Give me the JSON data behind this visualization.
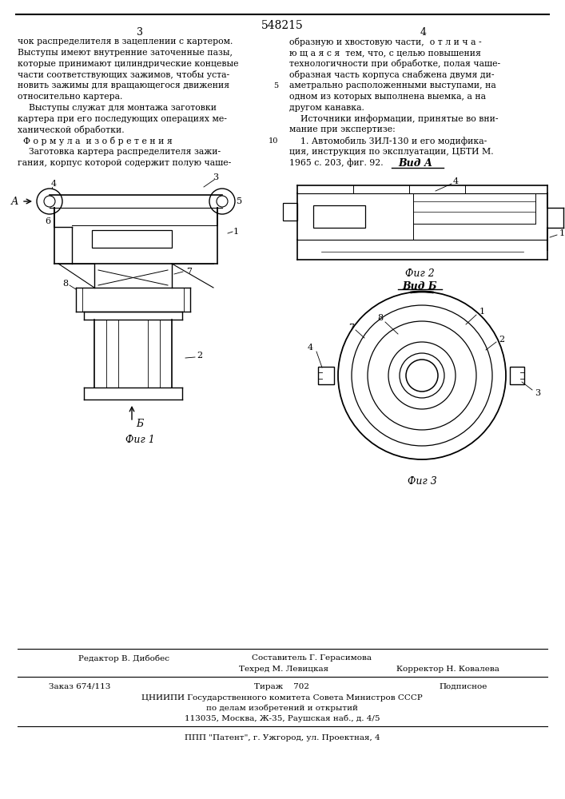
{
  "bg_color": "#ffffff",
  "page_color": "#ffffff",
  "patent_number": "548215",
  "col1_text": [
    "чок распределителя в зацеплении с картером.",
    "Выступы имеют внутренние заточенные пазы,",
    "которые принимают цилиндрические концевые",
    "части соответствующих зажимов, чтобы уста-",
    "новить зажимы для вращающегося движения",
    "относительно картера.",
    "    Выступы служат для монтажа заготовки",
    "картера при его последующих операциях ме-",
    "ханической обработки.",
    "  Ф о р м у л а  и з о б р е т е н и я",
    "    Заготовка картера распределителя зажи-",
    "гания, корпус которой содержит полую чаше-"
  ],
  "col2_text": [
    "образную и хвостовую части,  о т л и ч а -",
    "ю щ а я с я  тем, что, с целью повышения",
    "технологичности при обработке, полая чаше-",
    "образная часть корпуса снабжена двумя ди-",
    "аметрально расположенными выступами, на",
    "одном из которых выполнена выемка, а на",
    "другом канавка.",
    "    Источники информации, принятые во вни-",
    "мание при экспертизе:",
    "    1. Автомобиль ЗИЛ-130 и его модифика-",
    "ция, инструкция по эксплуатации, ЦБТИ М.",
    "1965 с. 203, фиг. 92."
  ]
}
